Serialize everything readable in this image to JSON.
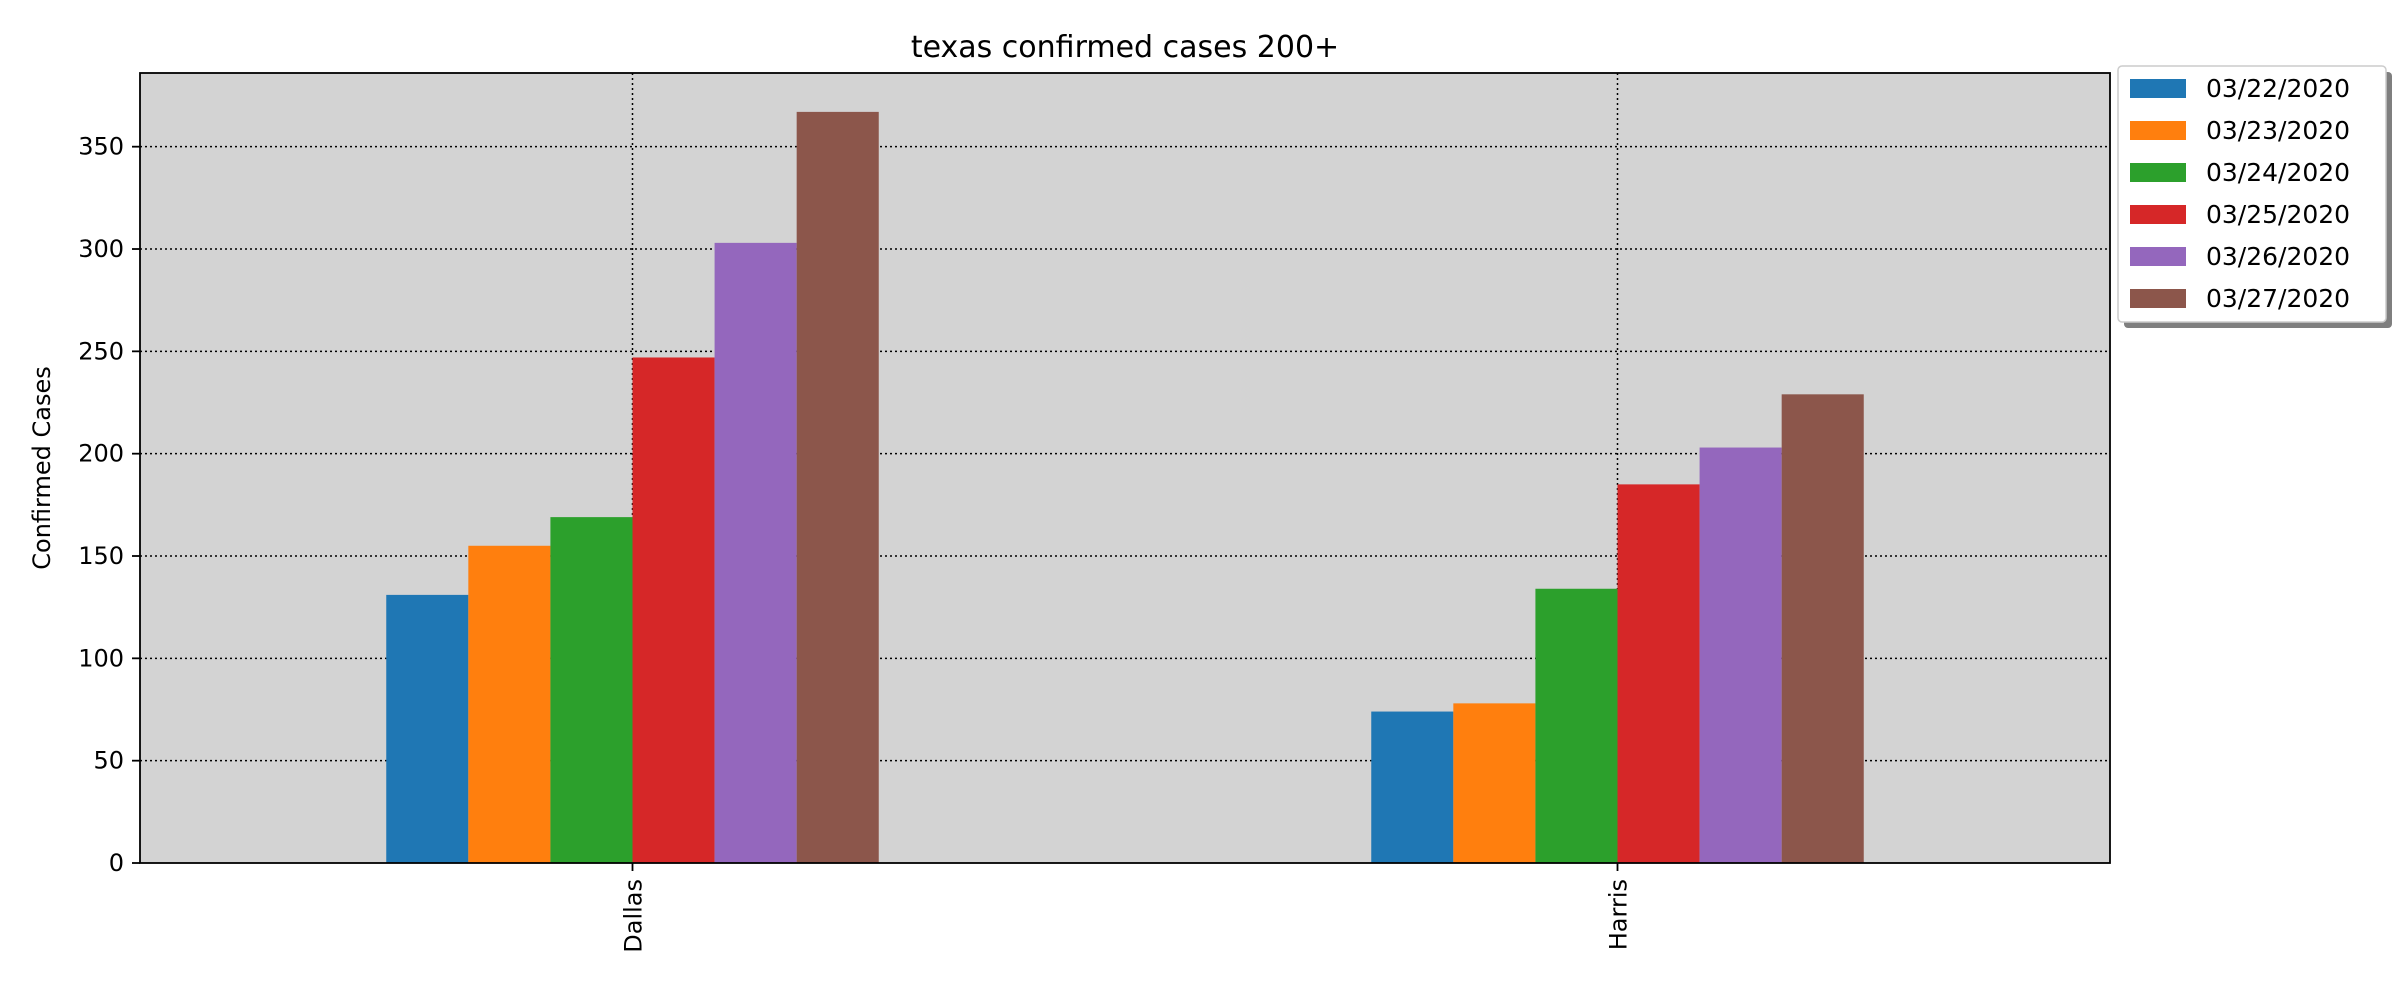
{
  "chart_data": {
    "type": "bar",
    "title": "texas confirmed cases 200+",
    "xlabel": "",
    "ylabel": "Confirmed Cases",
    "categories": [
      "Dallas",
      "Harris"
    ],
    "series": [
      {
        "name": "03/22/2020",
        "values": [
          131,
          74
        ],
        "color": "#1f77b4"
      },
      {
        "name": "03/23/2020",
        "values": [
          155,
          78
        ],
        "color": "#ff7f0e"
      },
      {
        "name": "03/24/2020",
        "values": [
          169,
          134
        ],
        "color": "#2ca02c"
      },
      {
        "name": "03/25/2020",
        "values": [
          247,
          185
        ],
        "color": "#d62728"
      },
      {
        "name": "03/26/2020",
        "values": [
          303,
          203
        ],
        "color": "#9467bd"
      },
      {
        "name": "03/27/2020",
        "values": [
          367,
          229
        ],
        "color": "#8c564b"
      }
    ],
    "ylim": [
      0,
      386
    ],
    "yticks": [
      0,
      50,
      100,
      150,
      200,
      250,
      300,
      350
    ],
    "grid": true,
    "legend": "outside-top-right",
    "plot_background": "#d3d3d3"
  }
}
